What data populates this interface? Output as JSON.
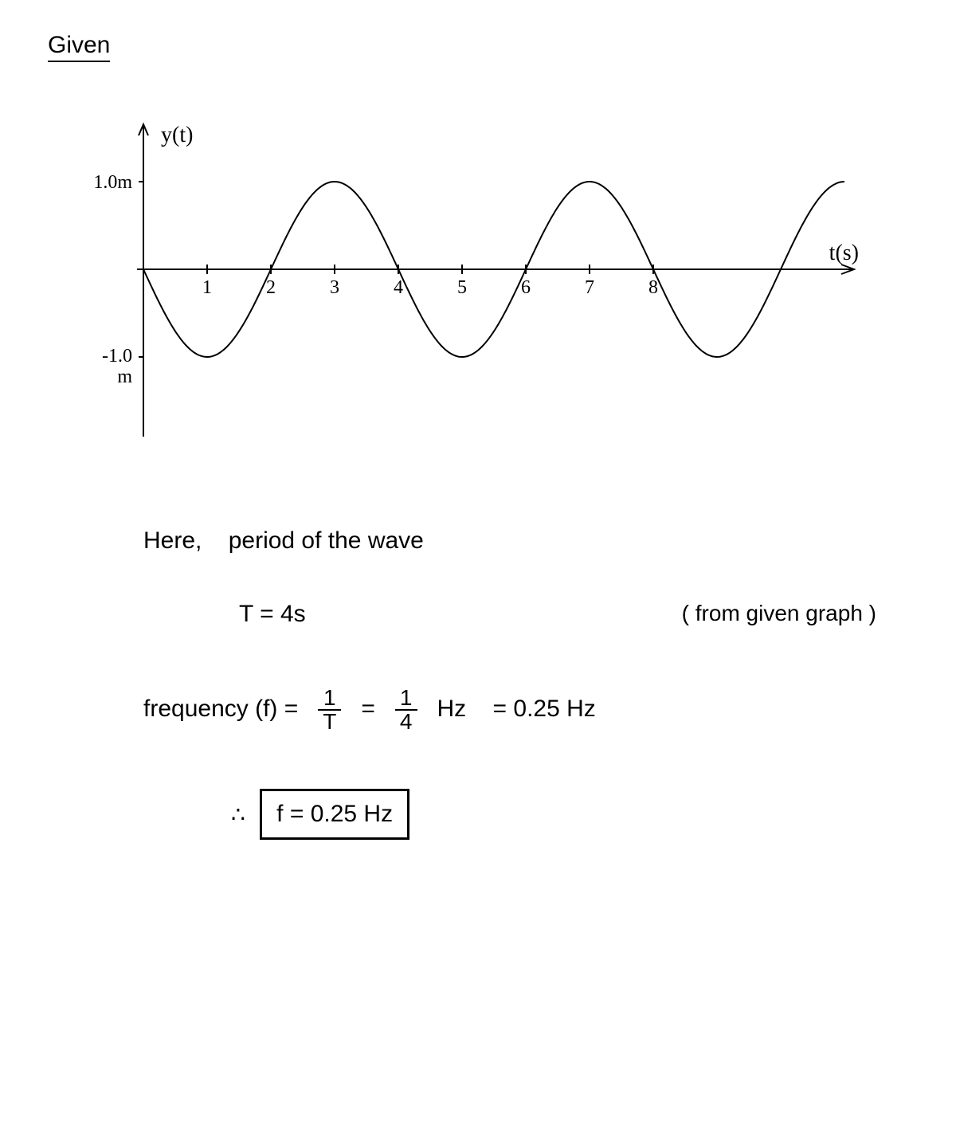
{
  "heading": "Given",
  "chart": {
    "type": "line",
    "y_label": "y(t)",
    "x_label": "t(s)",
    "y_max_tick": "1.0m",
    "y_min_tick": "-1.0",
    "y_min_unit": "m",
    "x_ticks": [
      "1",
      "2",
      "3",
      "4",
      "5",
      "6",
      "7",
      "8"
    ],
    "amplitude": 1.0,
    "period_seconds": 4.0,
    "phase": "negative_sine",
    "xlim": [
      0,
      11
    ],
    "ylim": [
      -1.2,
      1.2
    ],
    "axis_color": "#000000",
    "curve_color": "#000000",
    "curve_width": 2,
    "background_color": "#ffffff",
    "tick_fontsize": 24,
    "label_fontsize": 28
  },
  "work": {
    "line1_prefix": "Here,",
    "line1_rest": "period of the wave",
    "period_eq": "T  =  4s",
    "aside": "( from  given  graph )",
    "freq_label": "frequency (f)  =",
    "freq_frac_num": "1",
    "freq_frac_den": "T",
    "eq2_frac_num": "1",
    "eq2_frac_den": "4",
    "hz": "Hz",
    "eq3": "= 0.25 Hz",
    "therefore": "∴",
    "result": "f = 0.25 Hz"
  }
}
